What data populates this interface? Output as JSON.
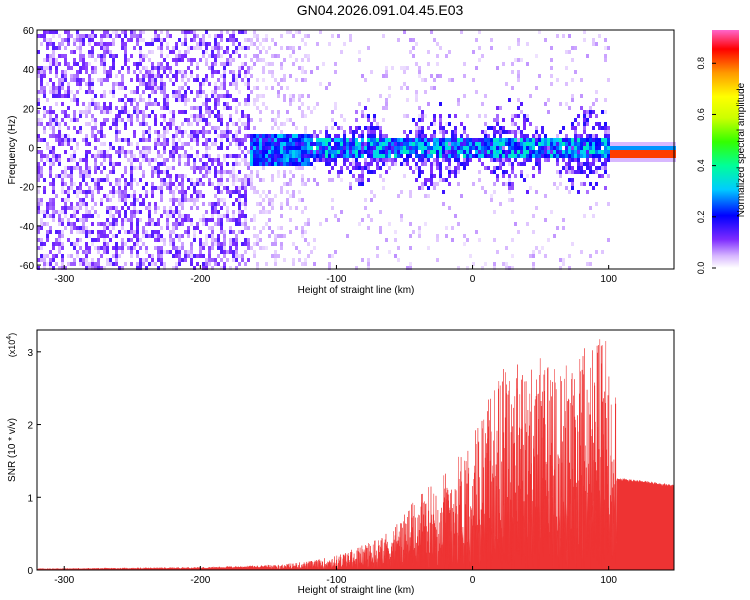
{
  "page_title": "GN04.2026.091.04.45.E03",
  "chart_data": [
    {
      "type": "heatmap",
      "xlabel": "Height of straight line (km)",
      "ylabel": "Frequency (Hz)",
      "xlim": [
        -320,
        148
      ],
      "ylim": [
        -62,
        60
      ],
      "xticks": [
        -300,
        -200,
        -100,
        0,
        100
      ],
      "yticks": [
        -60,
        -40,
        -20,
        0,
        20,
        40,
        60
      ],
      "colorbar": {
        "label": "Normalized spectral amplitude",
        "range": [
          0,
          0.93
        ],
        "ticks": [
          0.0,
          0.2,
          0.4,
          0.6,
          0.8
        ]
      },
      "features": [
        {
          "x_range": [
            -320,
            -165
          ],
          "description_values": {
            "amplitude": 0.15,
            "freq_range": [
              -60,
              60
            ]
          }
        },
        {
          "x_range": [
            -165,
            100
          ],
          "description_values": {
            "amplitude": 0.3,
            "center_freq": 0
          }
        },
        {
          "x_range": [
            100,
            148
          ],
          "description_values": {
            "amplitude": 0.9,
            "center_freq": -2
          }
        }
      ],
      "grid": false
    },
    {
      "type": "line",
      "xlabel": "Height of straight line (km)",
      "ylabel": "SNR (10 * v/v)",
      "multiplier_label": "(x10",
      "multiplier_exp": "4",
      "xlim": [
        -320,
        148
      ],
      "ylim": [
        0,
        3.3
      ],
      "xticks": [
        -300,
        -200,
        -100,
        0,
        100
      ],
      "yticks": [
        0,
        1,
        2,
        3
      ],
      "color": "#ee3333",
      "envelope": [
        {
          "x": -320,
          "y": 0.02
        },
        {
          "x": -250,
          "y": 0.03
        },
        {
          "x": -200,
          "y": 0.04
        },
        {
          "x": -160,
          "y": 0.06
        },
        {
          "x": -140,
          "y": 0.08
        },
        {
          "x": -120,
          "y": 0.12
        },
        {
          "x": -100,
          "y": 0.2
        },
        {
          "x": -80,
          "y": 0.35
        },
        {
          "x": -60,
          "y": 0.55
        },
        {
          "x": -45,
          "y": 0.9
        },
        {
          "x": -30,
          "y": 1.2
        },
        {
          "x": -15,
          "y": 1.45
        },
        {
          "x": 0,
          "y": 1.9
        },
        {
          "x": 15,
          "y": 2.5
        },
        {
          "x": 25,
          "y": 2.9
        },
        {
          "x": 40,
          "y": 2.8
        },
        {
          "x": 55,
          "y": 3.0
        },
        {
          "x": 70,
          "y": 2.9
        },
        {
          "x": 85,
          "y": 3.1
        },
        {
          "x": 98,
          "y": 3.3
        },
        {
          "x": 105,
          "y": 3.0
        },
        {
          "x": 106,
          "y": 1.25
        },
        {
          "x": 130,
          "y": 1.2
        },
        {
          "x": 148,
          "y": 1.15
        }
      ],
      "grid": false
    }
  ]
}
